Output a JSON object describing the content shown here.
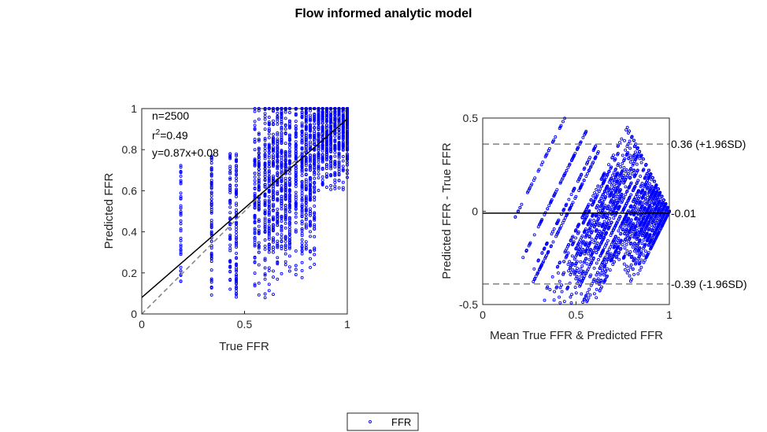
{
  "title": "Flow informed analytic model",
  "colors": {
    "points": "#0000ff",
    "fit_line": "#000000",
    "reference_line": "#808080"
  },
  "legend": {
    "label": "FFR",
    "placement": "bottom-center"
  },
  "chart_data": [
    {
      "type": "scatter",
      "name": "correlation",
      "xlabel": "True FFR",
      "ylabel": "Predicted FFR",
      "xlim": [
        0,
        1
      ],
      "ylim": [
        0,
        1
      ],
      "xticks": [
        "0",
        "0.5",
        "1"
      ],
      "yticks": [
        "0",
        "0.2",
        "0.4",
        "0.6",
        "0.8",
        "1"
      ],
      "grid": false,
      "annotations": {
        "n": "n=2500",
        "r2_prefix": "r",
        "r2_sup": "2",
        "r2_value": "=0.49",
        "fit": "y=0.87x+0.08"
      },
      "fit_line": {
        "slope": 0.87,
        "intercept": 0.08
      },
      "reference_line": {
        "slope": 1,
        "intercept": 0,
        "style": "dashed"
      },
      "x_clusters": [
        0.19,
        0.34,
        0.43,
        0.46,
        0.55,
        0.57,
        0.6,
        0.62,
        0.64,
        0.66,
        0.68,
        0.7,
        0.72,
        0.75,
        0.78,
        0.8,
        0.82,
        0.84,
        0.86,
        0.88,
        0.9,
        0.92,
        0.94,
        0.96,
        0.98,
        1.0
      ],
      "points_count": 2500
    },
    {
      "type": "scatter",
      "name": "bland-altman",
      "xlabel": "Mean True FFR & Predicted FFR",
      "ylabel": "Predicted FFR - True FFR",
      "xlim": [
        0,
        1
      ],
      "ylim": [
        -0.5,
        0.5
      ],
      "xticks": [
        "0",
        "0.5",
        "1"
      ],
      "yticks": [
        "-0.5",
        "0",
        "0.5"
      ],
      "grid": false,
      "mean_line": {
        "value": -0.01,
        "label": "-0.01"
      },
      "upper_loa": {
        "value": 0.36,
        "label": "0.36 (+1.96SD)"
      },
      "lower_loa": {
        "value": -0.39,
        "label": "-0.39 (-1.96SD)"
      },
      "points_count": 2500
    }
  ]
}
